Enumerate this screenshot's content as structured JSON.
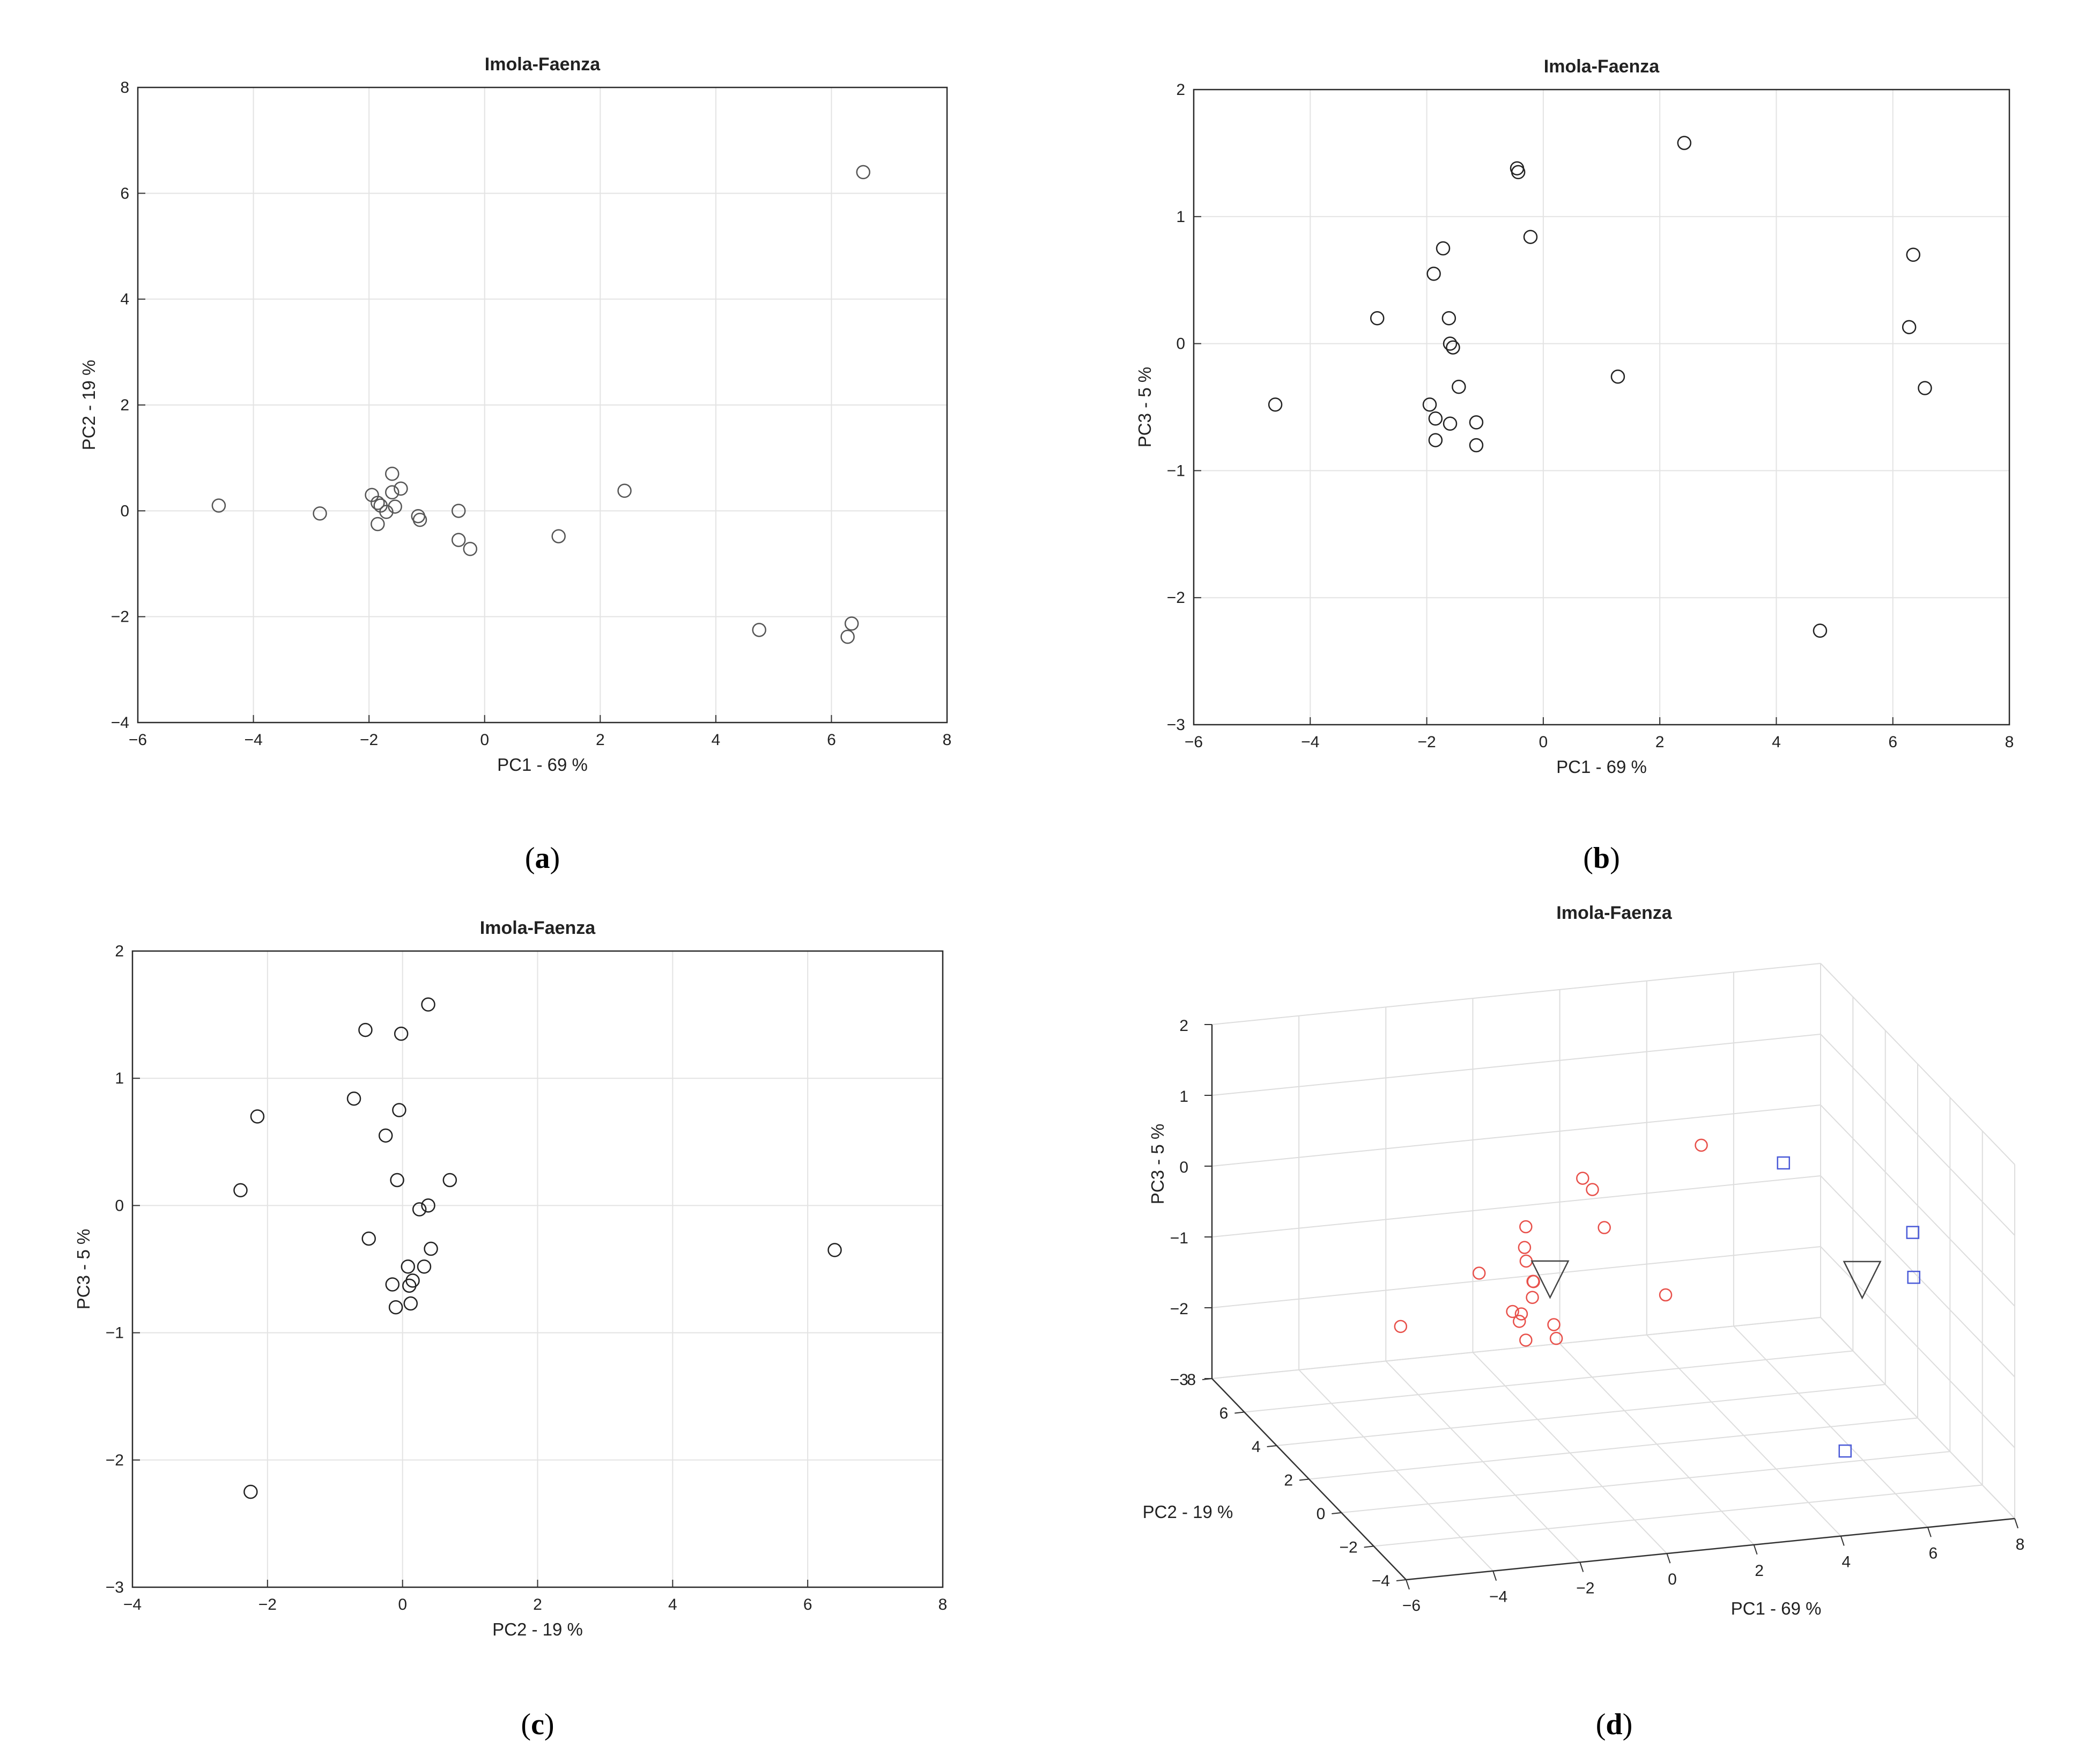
{
  "chart_data": [
    {
      "panel": "(a)",
      "caption_letter": "a",
      "type": "scatter",
      "title": "Imola-Faenza",
      "xlabel": "PC1 - 69 %",
      "ylabel": "PC2 - 19 %",
      "xlim": [
        -6,
        8
      ],
      "ylim": [
        -4,
        8
      ],
      "xticks": [
        -6,
        -4,
        -2,
        0,
        2,
        4,
        6,
        8
      ],
      "yticks": [
        -4,
        -2,
        0,
        2,
        4,
        6,
        8
      ],
      "grid": true,
      "marker": "circle",
      "color": "#555555",
      "points": [
        [
          -4.6,
          0.1
        ],
        [
          -2.85,
          -0.05
        ],
        [
          -1.95,
          0.3
        ],
        [
          -1.85,
          0.15
        ],
        [
          -1.85,
          -0.25
        ],
        [
          -1.8,
          0.1
        ],
        [
          -1.7,
          -0.02
        ],
        [
          -1.6,
          0.35
        ],
        [
          -1.6,
          0.7
        ],
        [
          -1.55,
          0.08
        ],
        [
          -1.45,
          0.42
        ],
        [
          -1.15,
          -0.1
        ],
        [
          -1.12,
          -0.17
        ],
        [
          -0.45,
          0.0
        ],
        [
          -0.45,
          -0.55
        ],
        [
          -0.25,
          -0.72
        ],
        [
          1.28,
          -0.48
        ],
        [
          2.42,
          0.38
        ],
        [
          4.75,
          -2.25
        ],
        [
          6.28,
          -2.38
        ],
        [
          6.35,
          -2.13
        ],
        [
          6.55,
          6.4
        ]
      ]
    },
    {
      "panel": "(b)",
      "caption_letter": "b",
      "type": "scatter",
      "title": "Imola-Faenza",
      "xlabel": "PC1 - 69 %",
      "ylabel": "PC3 - 5 %",
      "xlim": [
        -6,
        8
      ],
      "ylim": [
        -3,
        2
      ],
      "xticks": [
        -6,
        -4,
        -2,
        0,
        2,
        4,
        6,
        8
      ],
      "yticks": [
        -3,
        -2,
        -1,
        0,
        1,
        2
      ],
      "grid": true,
      "marker": "circle",
      "color": "#222222",
      "points": [
        [
          -4.6,
          -0.48
        ],
        [
          -2.85,
          0.2
        ],
        [
          -1.95,
          -0.48
        ],
        [
          -1.88,
          0.55
        ],
        [
          -1.85,
          -0.59
        ],
        [
          -1.85,
          -0.76
        ],
        [
          -1.72,
          0.75
        ],
        [
          -1.62,
          0.2
        ],
        [
          -1.6,
          0.0
        ],
        [
          -1.6,
          -0.63
        ],
        [
          -1.55,
          -0.03
        ],
        [
          -1.45,
          -0.34
        ],
        [
          -1.15,
          -0.62
        ],
        [
          -1.15,
          -0.8
        ],
        [
          -0.45,
          1.38
        ],
        [
          -0.43,
          1.35
        ],
        [
          -0.22,
          0.84
        ],
        [
          1.28,
          -0.26
        ],
        [
          2.42,
          1.58
        ],
        [
          4.75,
          -2.26
        ],
        [
          6.28,
          0.13
        ],
        [
          6.35,
          0.7
        ],
        [
          6.55,
          -0.35
        ]
      ]
    },
    {
      "panel": "(c)",
      "caption_letter": "c",
      "type": "scatter",
      "title": "Imola-Faenza",
      "xlabel": "PC2 - 19 %",
      "ylabel": "PC3 - 5 %",
      "xlim": [
        -4,
        8
      ],
      "ylim": [
        -3,
        2
      ],
      "xticks": [
        -4,
        -2,
        0,
        2,
        4,
        6,
        8
      ],
      "yticks": [
        -3,
        -2,
        -1,
        0,
        1,
        2
      ],
      "grid": true,
      "marker": "circle",
      "color": "#222222",
      "points": [
        [
          -2.4,
          0.12
        ],
        [
          -2.25,
          -2.25
        ],
        [
          -2.15,
          0.7
        ],
        [
          -0.72,
          0.84
        ],
        [
          -0.55,
          1.38
        ],
        [
          -0.5,
          -0.26
        ],
        [
          -0.25,
          0.55
        ],
        [
          -0.15,
          -0.62
        ],
        [
          -0.1,
          -0.8
        ],
        [
          -0.08,
          0.2
        ],
        [
          -0.05,
          0.75
        ],
        [
          -0.02,
          1.35
        ],
        [
          0.08,
          -0.48
        ],
        [
          0.1,
          -0.63
        ],
        [
          0.12,
          -0.77
        ],
        [
          0.15,
          -0.59
        ],
        [
          0.25,
          -0.03
        ],
        [
          0.32,
          -0.48
        ],
        [
          0.38,
          1.58
        ],
        [
          0.38,
          0.0
        ],
        [
          0.42,
          -0.34
        ],
        [
          0.7,
          0.2
        ],
        [
          6.4,
          -0.35
        ]
      ]
    },
    {
      "panel": "(d)",
      "caption_letter": "d",
      "type": "scatter3d",
      "title": "Imola-Faenza",
      "xlabel": "PC1 - 69 %",
      "ylabel": "PC2 - 19 %",
      "zlabel": "PC3 - 5 %",
      "xlim": [
        -6,
        8
      ],
      "ylim": [
        -4,
        8
      ],
      "zlim": [
        -3,
        2
      ],
      "xticks": [
        -6,
        -4,
        -2,
        0,
        2,
        4,
        6,
        8
      ],
      "yticks": [
        -4,
        -2,
        0,
        2,
        4,
        6,
        8
      ],
      "zticks": [
        -3,
        -2,
        -1,
        0,
        1,
        2
      ],
      "grid": true,
      "groups": [
        {
          "marker": "circle",
          "color": "#e8504a",
          "points": [
            [
              -4.6,
              0.1,
              -0.48
            ],
            [
              -2.85,
              -0.05,
              0.2
            ],
            [
              -1.95,
              0.3,
              -0.48
            ],
            [
              -1.88,
              -0.25,
              0.55
            ],
            [
              -1.85,
              0.15,
              -0.59
            ],
            [
              -1.85,
              -0.25,
              -0.76
            ],
            [
              -1.72,
              0.1,
              0.75
            ],
            [
              -1.62,
              0.35,
              0.2
            ],
            [
              -1.6,
              -0.02,
              0.0
            ],
            [
              -1.6,
              0.7,
              -0.63
            ],
            [
              -1.55,
              0.08,
              -0.03
            ],
            [
              -1.45,
              0.42,
              -0.34
            ],
            [
              -1.15,
              -0.1,
              -0.62
            ],
            [
              -1.12,
              -0.17,
              -0.8
            ],
            [
              -0.45,
              0.0,
              1.38
            ],
            [
              -0.43,
              -0.55,
              1.35
            ],
            [
              -0.22,
              -0.72,
              0.84
            ],
            [
              1.28,
              -0.48,
              -0.26
            ],
            [
              2.42,
              0.38,
              1.58
            ]
          ]
        },
        {
          "marker": "square",
          "color": "#4a5ad8",
          "points": [
            [
              4.75,
              -2.25,
              -2.26
            ],
            [
              6.28,
              -2.38,
              0.13
            ],
            [
              6.35,
              -2.13,
              0.7
            ],
            [
              6.55,
              6.4,
              -0.35
            ]
          ]
        },
        {
          "marker": "triangle-down",
          "color": "#444444",
          "points": [
            [
              -1.2,
              0.0,
              0.0
            ],
            [
              5.98,
              0.0,
              -0.45
            ]
          ]
        }
      ]
    }
  ]
}
